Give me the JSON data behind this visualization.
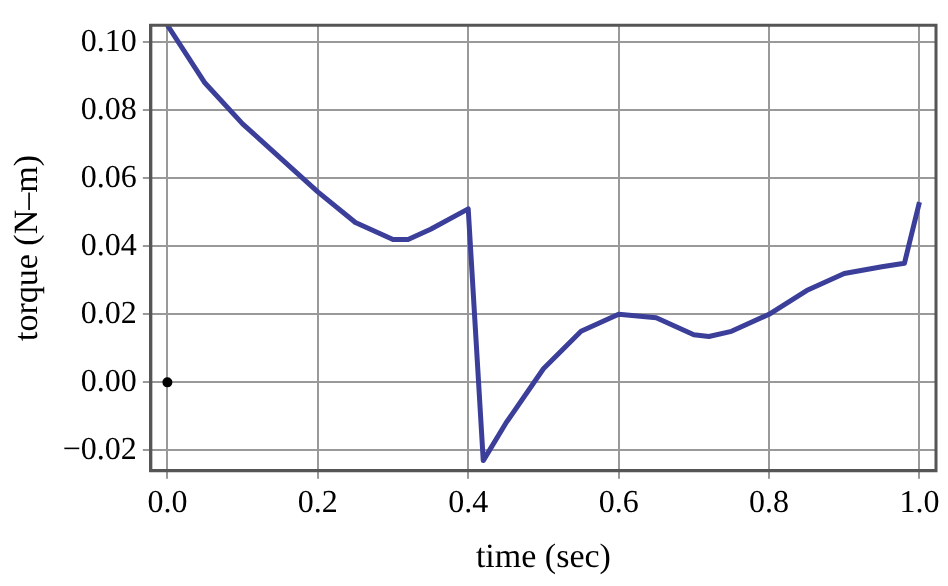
{
  "chart_data": {
    "type": "line",
    "xlabel": "time (sec)",
    "ylabel": "torque (N–m)",
    "xlim": [
      -0.022,
      1.022
    ],
    "ylim": [
      -0.026,
      0.105
    ],
    "xticks": [
      {
        "value": 0,
        "label": "0.0"
      },
      {
        "value": 0.2,
        "label": "0.2"
      },
      {
        "value": 0.4,
        "label": "0.4"
      },
      {
        "value": 0.6,
        "label": "0.6"
      },
      {
        "value": 0.8,
        "label": "0.8"
      },
      {
        "value": 1,
        "label": "1.0"
      }
    ],
    "yticks": [
      {
        "value": -0.02,
        "label": "−0.02"
      },
      {
        "value": 0,
        "label": "0.00"
      },
      {
        "value": 0.02,
        "label": "0.02"
      },
      {
        "value": 0.04,
        "label": "0.04"
      },
      {
        "value": 0.06,
        "label": "0.06"
      },
      {
        "value": 0.08,
        "label": "0.08"
      },
      {
        "value": 0.1,
        "label": "0.10"
      }
    ],
    "grid": true,
    "legend": false,
    "line_style": "solid",
    "marker": "none",
    "series": [
      {
        "color": "#3b3f9a",
        "x": [
          0,
          0.05,
          0.1,
          0.15,
          0.2,
          0.25,
          0.3,
          0.32,
          0.35,
          0.4,
          0.42,
          0.45,
          0.5,
          0.55,
          0.6,
          0.65,
          0.7,
          0.72,
          0.75,
          0.8,
          0.85,
          0.9,
          0.95,
          0.98,
          1.0
        ],
        "values": [
          0.105,
          0.088,
          0.076,
          0.066,
          0.056,
          0.047,
          0.042,
          0.042,
          0.045,
          0.051,
          -0.023,
          -0.012,
          0.004,
          0.015,
          0.02,
          0.019,
          0.014,
          0.0135,
          0.015,
          0.02,
          0.027,
          0.032,
          0.034,
          0.035,
          0.053
        ]
      },
      {
        "type": "scatter",
        "marker": "circle",
        "color": "#000000",
        "x": [
          0
        ],
        "values": [
          0
        ]
      }
    ]
  }
}
